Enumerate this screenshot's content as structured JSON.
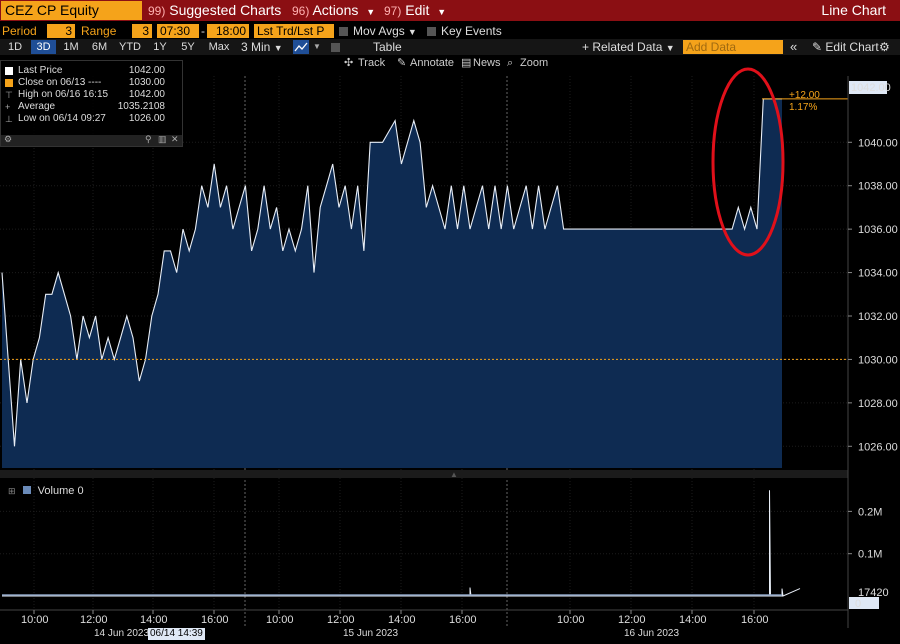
{
  "titlebar": {
    "security": "CEZ CP Equity",
    "suggested": {
      "num": "99)",
      "label": "Suggested Charts"
    },
    "actions": {
      "num": "96)",
      "label": "Actions"
    },
    "edit": {
      "num": "97)",
      "label": "Edit"
    },
    "chart_type": "Line Chart"
  },
  "controls": {
    "period_label": "Period",
    "period_value": "3",
    "range_label": "Range",
    "range_value": "3",
    "time_from": "07:30",
    "time_sep": "-",
    "time_to": "18:00",
    "price_type": "Lst Trd/Lst P",
    "mov_avgs": "Mov Avgs",
    "key_events": "Key Events"
  },
  "tabs": [
    {
      "label": "1D",
      "active": false
    },
    {
      "label": "3D",
      "active": true
    },
    {
      "label": "1M",
      "active": false
    },
    {
      "label": "6M",
      "active": false
    },
    {
      "label": "YTD",
      "active": false
    },
    {
      "label": "1Y",
      "active": false
    },
    {
      "label": "5Y",
      "active": false
    },
    {
      "label": "Max",
      "active": false
    }
  ],
  "toolbar": {
    "interval": "3 Min",
    "table": "Table",
    "related_data": "Related Data",
    "add_data_placeholder": "Add Data",
    "edit_chart": "Edit Chart"
  },
  "chart_tools": {
    "track": "Track",
    "annotate": "Annotate",
    "news": "News",
    "zoom": "Zoom"
  },
  "legend": {
    "last_price": {
      "label": "Last Price",
      "value": "1042.00",
      "color": "#ffffff"
    },
    "close": {
      "label": "Close on 06/13 ----",
      "value": "1030.00",
      "color": "#f5a31a"
    },
    "high": {
      "label": "High on 06/16 16:15",
      "value": "1042.00"
    },
    "average": {
      "label": "Average",
      "value": "1035.2108"
    },
    "low": {
      "label": "Low on 06/14 09:27",
      "value": "1026.00"
    }
  },
  "volume_legend": {
    "label": "Volume",
    "value": "0"
  },
  "price_axis": {
    "ticks": [
      "1040.00",
      "1038.00",
      "1036.00",
      "1034.00",
      "1032.00",
      "1030.00",
      "1028.00",
      "1026.00"
    ],
    "last_value_label": "1042.00",
    "change": "+12.00",
    "change_pct": "1.17%"
  },
  "volume_axis": {
    "ticks": [
      "0.2M",
      "0.1M"
    ],
    "last_value_label": "17420",
    "zero_label": "0"
  },
  "time_axis": {
    "times": [
      "10:00",
      "12:00",
      "14:00",
      "16:00",
      "10:00",
      "12:00",
      "14:00",
      "16:00",
      "10:00",
      "12:00",
      "14:00",
      "16:00"
    ],
    "dates": [
      "14 Jun 2023",
      "15 Jun 2023",
      "16 Jun 2023"
    ],
    "cursor_date": "06/14 14:39"
  },
  "colors": {
    "title_bar": "#8b0f13",
    "amber": "#f5a31a",
    "area_fill": "#0e2b52",
    "price_line": "#e8eef7",
    "highlight_circle": "#e0101a",
    "close_line": "#f5a31a"
  },
  "chart_data": {
    "type": "area",
    "series": [
      {
        "name": "Last Price",
        "x": [
          0,
          2,
          4,
          6,
          8,
          10,
          12,
          14,
          16,
          18,
          20,
          22,
          24,
          26,
          28,
          30,
          32,
          34,
          36,
          38,
          40,
          42,
          44,
          46,
          48,
          50,
          52,
          54,
          56,
          58,
          60,
          62,
          64,
          66,
          68,
          70,
          72,
          74,
          76,
          78,
          80,
          82,
          84,
          86,
          88,
          90,
          92,
          94,
          96,
          98,
          100,
          102,
          104,
          106,
          108,
          110,
          112,
          114,
          116,
          118,
          120,
          122,
          124,
          126,
          128,
          130,
          132,
          134,
          136,
          138,
          140,
          142,
          144,
          146,
          148,
          150,
          152,
          154,
          156,
          158,
          160,
          162,
          164,
          166,
          168,
          170,
          172,
          174,
          176,
          178,
          180,
          182,
          184,
          186,
          188,
          190,
          192,
          194,
          196,
          198,
          200,
          202,
          204,
          206,
          208,
          210,
          212,
          214,
          216,
          218,
          220,
          222,
          224,
          226,
          228,
          230,
          232,
          234,
          236,
          238,
          240,
          242,
          244,
          246,
          248,
          250
        ],
        "y": [
          1034,
          1030,
          1026,
          1030,
          1028,
          1030,
          1031,
          1033,
          1033,
          1034,
          1033,
          1032,
          1030,
          1032,
          1031,
          1032,
          1030,
          1031,
          1030,
          1031,
          1032,
          1031,
          1029,
          1030,
          1032,
          1033,
          1035,
          1035,
          1034,
          1036,
          1035,
          1036,
          1038,
          1037,
          1039,
          1037,
          1038,
          1036,
          1037,
          1038,
          1035,
          1036,
          1038,
          1036,
          1037,
          1035,
          1036,
          1035,
          1036,
          1038,
          1034,
          1037,
          1038,
          1039,
          1037,
          1038,
          1036,
          1038,
          1035,
          1040,
          1040,
          1040,
          1040.5,
          1041,
          1039,
          1040,
          1041,
          1040,
          1037,
          1038,
          1037,
          1036,
          1038,
          1036,
          1038,
          1036,
          1037,
          1038,
          1036,
          1038,
          1036,
          1038,
          1036,
          1037,
          1038,
          1036,
          1038,
          1036,
          1037,
          1038,
          1036,
          1036,
          1036,
          1036,
          1036,
          1036,
          1036,
          1036,
          1036,
          1036,
          1036,
          1036,
          1036,
          1036,
          1036,
          1036,
          1036,
          1036,
          1036,
          1036,
          1036,
          1036,
          1036,
          1036,
          1036,
          1036,
          1036,
          1036,
          1037,
          1036,
          1037,
          1036,
          1042,
          1042,
          1042,
          1042
        ]
      },
      {
        "name": "Volume",
        "x": [
          0,
          120,
          150,
          200,
          240,
          246,
          250
        ],
        "y": [
          0,
          0,
          20000,
          0,
          0,
          250000,
          17420
        ]
      }
    ],
    "close_reference": 1030,
    "ylim": [
      1025,
      1042.5
    ],
    "volume_ylim": [
      0,
      260000
    ],
    "grid": true,
    "legend_position": "top-left"
  }
}
